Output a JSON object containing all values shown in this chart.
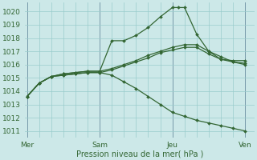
{
  "title": "",
  "xlabel": "Pression niveau de la mer( hPa )",
  "background_color": "#cce8e8",
  "grid_color": "#99cccc",
  "line_color": "#336633",
  "marker_color": "#336633",
  "ylim": [
    1010.5,
    1020.7
  ],
  "yticks": [
    1011,
    1012,
    1013,
    1014,
    1015,
    1016,
    1017,
    1018,
    1019,
    1020
  ],
  "xlim": [
    -0.1,
    9.4
  ],
  "xtick_labels": [
    "Mer",
    "Sam",
    "Jeu",
    "Ven"
  ],
  "xtick_positions": [
    0,
    3,
    6,
    9
  ],
  "vline_color": "#7799aa",
  "series": [
    {
      "x": [
        0,
        0.5,
        1.0,
        1.5,
        2.0,
        2.5,
        3.0,
        3.5,
        4.0,
        4.5,
        5.0,
        5.5,
        6.0,
        6.25,
        6.5,
        7.0,
        7.5,
        8.0,
        8.5,
        9.0
      ],
      "y": [
        1013.6,
        1014.6,
        1015.1,
        1015.3,
        1015.4,
        1015.5,
        1015.5,
        1017.8,
        1017.8,
        1018.2,
        1018.8,
        1019.6,
        1020.3,
        1020.3,
        1020.3,
        1018.3,
        1017.0,
        1016.6,
        1016.2,
        1016.0
      ]
    },
    {
      "x": [
        0,
        0.5,
        1.0,
        1.5,
        2.0,
        2.5,
        3.0,
        3.5,
        4.0,
        4.5,
        5.0,
        5.5,
        6.0,
        6.5,
        7.0,
        7.5,
        8.0,
        8.5,
        9.0
      ],
      "y": [
        1013.6,
        1014.6,
        1015.1,
        1015.3,
        1015.4,
        1015.5,
        1015.5,
        1015.7,
        1016.0,
        1016.3,
        1016.7,
        1017.0,
        1017.3,
        1017.5,
        1017.5,
        1017.0,
        1016.4,
        1016.3,
        1016.3
      ]
    },
    {
      "x": [
        0,
        0.5,
        1.0,
        1.5,
        2.0,
        2.5,
        3.0,
        3.5,
        4.0,
        4.5,
        5.0,
        5.5,
        6.0,
        6.5,
        7.0,
        7.5,
        8.0,
        8.5,
        9.0
      ],
      "y": [
        1013.6,
        1014.6,
        1015.1,
        1015.2,
        1015.3,
        1015.4,
        1015.4,
        1015.6,
        1015.9,
        1016.2,
        1016.5,
        1016.9,
        1017.1,
        1017.3,
        1017.3,
        1016.8,
        1016.4,
        1016.2,
        1016.1
      ]
    },
    {
      "x": [
        0,
        0.5,
        1.0,
        1.5,
        2.0,
        2.5,
        3.0,
        3.5,
        4.0,
        4.5,
        5.0,
        5.5,
        6.0,
        6.5,
        7.0,
        7.5,
        8.0,
        8.5,
        9.0
      ],
      "y": [
        1013.6,
        1014.6,
        1015.1,
        1015.2,
        1015.3,
        1015.4,
        1015.4,
        1015.2,
        1014.7,
        1014.2,
        1013.6,
        1013.0,
        1012.4,
        1012.1,
        1011.8,
        1011.6,
        1011.4,
        1011.2,
        1011.0
      ]
    }
  ]
}
